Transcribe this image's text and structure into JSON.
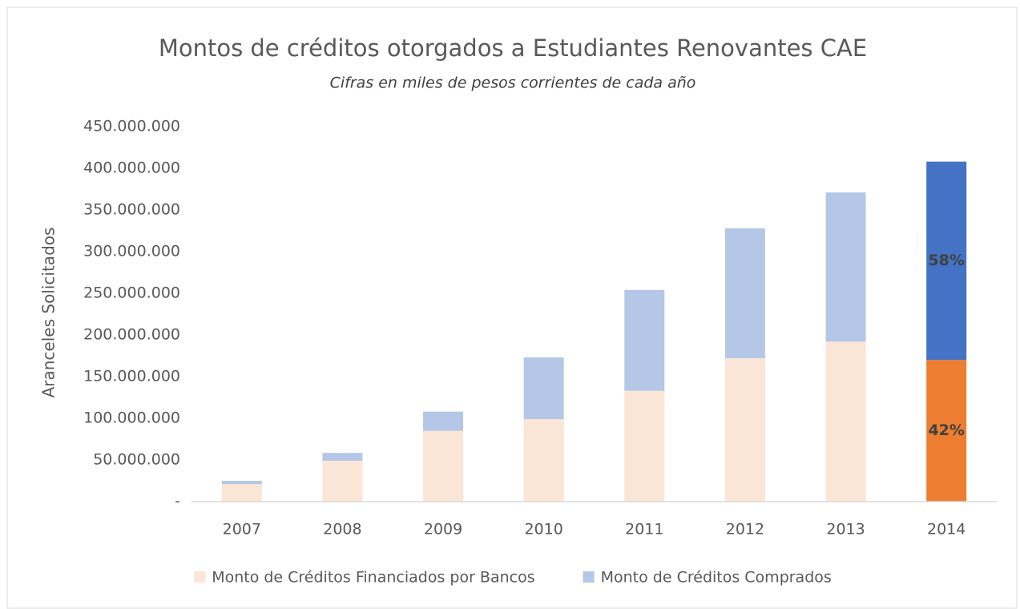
{
  "chart_data": {
    "type": "stacked_bar",
    "title": "Montos de créditos otorgados a Estudiantes Renovantes CAE",
    "subtitle": "Cifras en miles de pesos corrientes de cada año",
    "y_label": "Aranceles Solicitados",
    "categories": [
      "2007",
      "2008",
      "2009",
      "2010",
      "2011",
      "2012",
      "2013",
      "2014"
    ],
    "series": [
      {
        "name": "Monto de Créditos Financiados por Bancos",
        "color": "#fbe5d6",
        "colors": [
          "#fbe5d6",
          "#fbe5d6",
          "#fbe5d6",
          "#fbe5d6",
          "#fbe5d6",
          "#fbe5d6",
          "#fbe5d6",
          "#ed7d31"
        ],
        "values": [
          21000000,
          49000000,
          85000000,
          99000000,
          133000000,
          172000000,
          192000000,
          170000000
        ]
      },
      {
        "name": "Monto de Créditos Comprados",
        "color": "#b4c7e7",
        "colors": [
          "#b4c7e7",
          "#b4c7e7",
          "#b4c7e7",
          "#b4c7e7",
          "#b4c7e7",
          "#b4c7e7",
          "#b4c7e7",
          "#4472c4"
        ],
        "values": [
          4000000,
          9500000,
          23000000,
          74000000,
          121000000,
          156000000,
          179000000,
          238000000
        ]
      }
    ],
    "annotations": [
      {
        "category": "2014",
        "series": "Monto de Créditos Financiados por Bancos",
        "text": "42%"
      },
      {
        "category": "2014",
        "series": "Monto de Créditos Comprados",
        "text": "58%"
      }
    ],
    "ylim": [
      0,
      450000000
    ],
    "yticks": [
      {
        "value": 0,
        "label": "-"
      },
      {
        "value": 50000000,
        "label": "50.000.000"
      },
      {
        "value": 100000000,
        "label": "100.000.000"
      },
      {
        "value": 150000000,
        "label": "150.000.000"
      },
      {
        "value": 200000000,
        "label": "200.000.000"
      },
      {
        "value": 250000000,
        "label": "250.000.000"
      },
      {
        "value": 300000000,
        "label": "300.000.000"
      },
      {
        "value": 350000000,
        "label": "350.000.000"
      },
      {
        "value": 400000000,
        "label": "400.000.000"
      },
      {
        "value": 450000000,
        "label": "450.000.000"
      }
    ],
    "grid": false,
    "legend": "bottom"
  }
}
